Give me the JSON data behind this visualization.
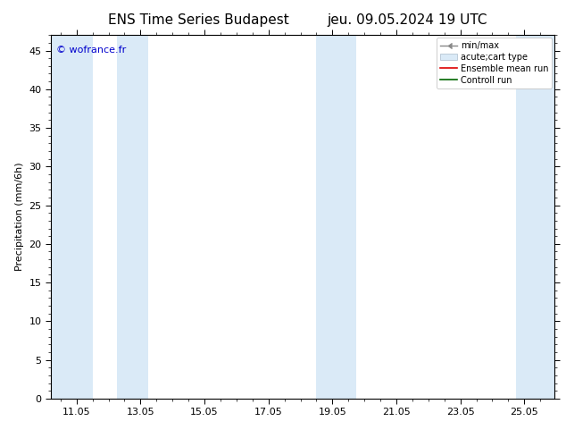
{
  "title_left": "ENS Time Series Budapest",
  "title_right": "jeu. 09.05.2024 19 UTC",
  "ylabel": "Precipitation (mm/6h)",
  "watermark": "© wofrance.fr",
  "xlim": [
    10.25,
    26.0
  ],
  "ylim": [
    0,
    47
  ],
  "yticks": [
    0,
    5,
    10,
    15,
    20,
    25,
    30,
    35,
    40,
    45
  ],
  "xticks": [
    11.05,
    13.05,
    15.05,
    17.05,
    19.05,
    21.05,
    23.05,
    25.05
  ],
  "xtick_labels": [
    "11.05",
    "13.05",
    "15.05",
    "17.05",
    "19.05",
    "21.05",
    "23.05",
    "25.05"
  ],
  "shaded_bands": [
    [
      10.25,
      11.55,
      "#daeaf7"
    ],
    [
      12.3,
      13.3,
      "#daeaf7"
    ],
    [
      18.55,
      19.05,
      "#daeaf7"
    ],
    [
      19.05,
      19.8,
      "#daeaf7"
    ],
    [
      24.8,
      26.0,
      "#daeaf7"
    ]
  ],
  "legend_labels": [
    "min/max",
    "acute;cart type",
    "Ensemble mean run",
    "Controll run"
  ],
  "band_color": "#daeaf7",
  "bg_color": "#ffffff",
  "title_fontsize": 11,
  "tick_fontsize": 8,
  "ylabel_fontsize": 8,
  "watermark_color": "#0000cc",
  "legend_fontsize": 7
}
